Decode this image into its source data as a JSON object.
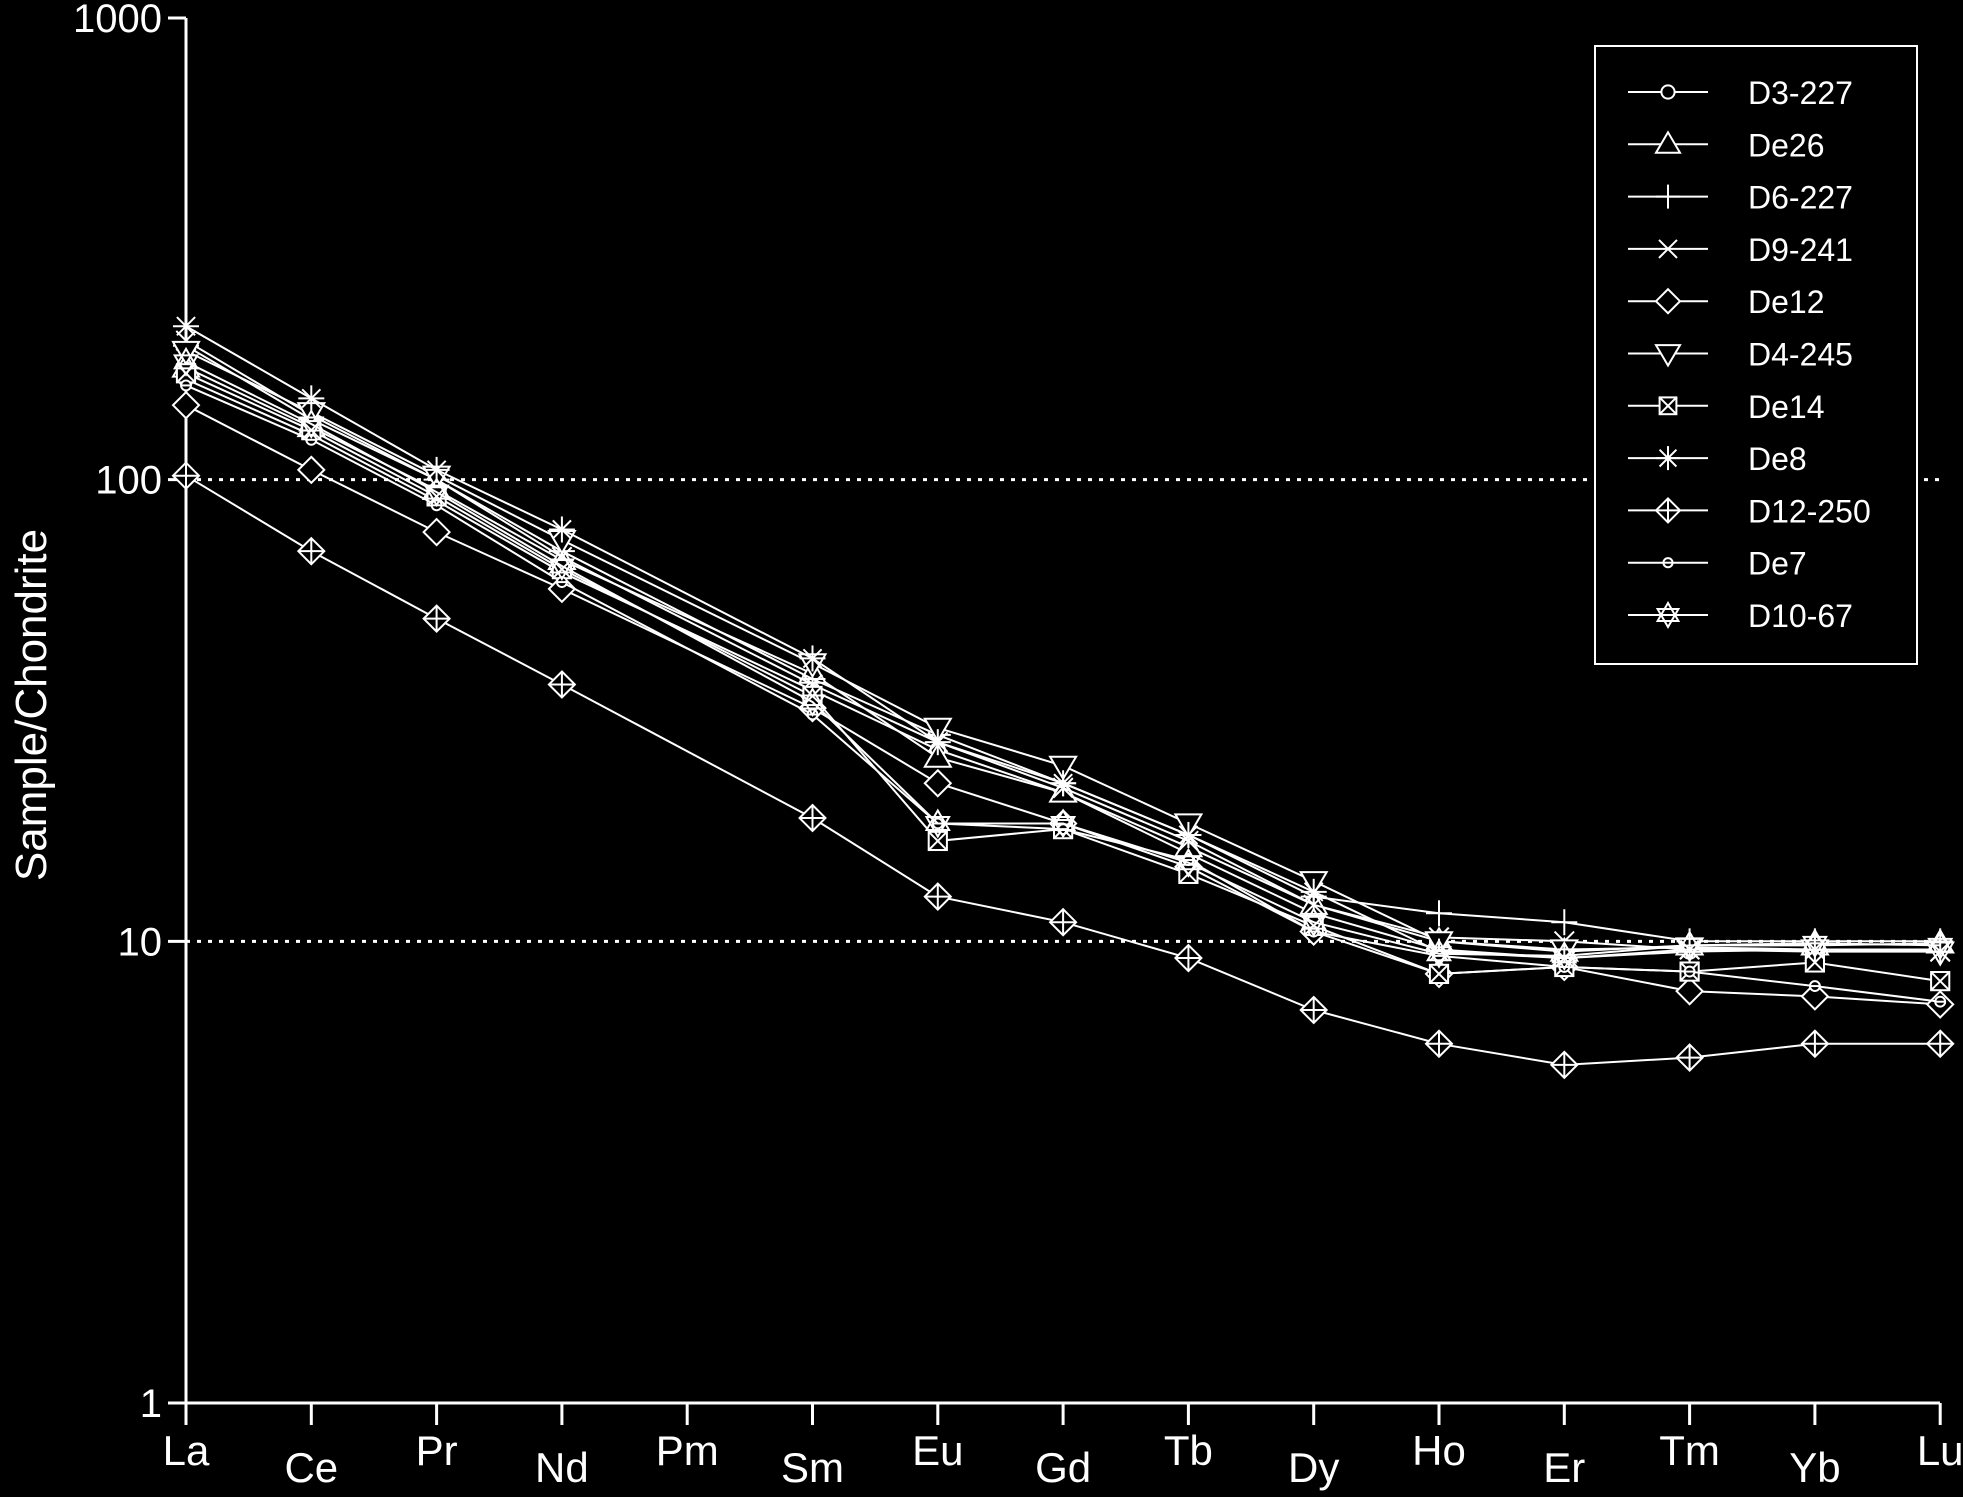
{
  "chart_data": {
    "type": "line",
    "title": "",
    "xlabel": "",
    "ylabel": "Sample/Chondrite",
    "yscale": "log",
    "ylim": [
      1,
      1000
    ],
    "yticks": [
      "1",
      "10",
      "100",
      "1000"
    ],
    "reference_lines": [
      10,
      100
    ],
    "grid": false,
    "legend_position": "top-right",
    "colors": {
      "background": "#000000",
      "foreground": "#ffffff"
    },
    "categories": [
      "La",
      "Ce",
      "Pr",
      "Nd",
      "Pm",
      "Sm",
      "Eu",
      "Gd",
      "Tb",
      "Dy",
      "Ho",
      "Er",
      "Tm",
      "Yb",
      "Lu"
    ],
    "series": [
      {
        "name": "D3-227",
        "marker": "circle",
        "values": [
          165,
          125,
          90,
          63,
          null,
          35,
          26,
          21,
          15.5,
          11.5,
          9.6,
          9.2,
          9.5,
          9.6,
          9.6
        ]
      },
      {
        "name": "De26",
        "marker": "triangle-up",
        "values": [
          175,
          130,
          95,
          67,
          null,
          38,
          25,
          21,
          16,
          12,
          10,
          9.5,
          9.8,
          9.8,
          9.9
        ]
      },
      {
        "name": "D6-227",
        "marker": "plus",
        "values": [
          195,
          135,
          100,
          70,
          null,
          37,
          28,
          22,
          17,
          12.5,
          11.5,
          11,
          10,
          10,
          10
        ]
      },
      {
        "name": "D9-241",
        "marker": "x",
        "values": [
          200,
          138,
          100,
          68,
          null,
          36,
          27,
          21.5,
          16.5,
          12,
          10.2,
          10,
          9.6,
          9.5,
          9.5
        ]
      },
      {
        "name": "De12",
        "marker": "diamond",
        "values": [
          145,
          105,
          77,
          58,
          null,
          32,
          22,
          18,
          14.5,
          10.5,
          8.5,
          8.8,
          7.8,
          7.6,
          7.3
        ]
      },
      {
        "name": "D4-245",
        "marker": "triangle-down",
        "values": [
          190,
          140,
          102,
          74,
          null,
          40,
          29,
          24,
          18,
          13.5,
          10,
          9.6,
          9.7,
          9.6,
          9.5
        ]
      },
      {
        "name": "De14",
        "marker": "square-x",
        "values": [
          170,
          128,
          92,
          64,
          null,
          34,
          16.5,
          17.5,
          14,
          10.8,
          8.5,
          8.8,
          8.6,
          9.0,
          8.2
        ]
      },
      {
        "name": "De8",
        "marker": "asterisk",
        "values": [
          215,
          150,
          105,
          78,
          null,
          41,
          27,
          22,
          17,
          12.8,
          9.5,
          9.2,
          9.6,
          9.6,
          9.5
        ]
      },
      {
        "name": "D12-250",
        "marker": "diamond-plus",
        "values": [
          102,
          70,
          50,
          36,
          null,
          18.5,
          12.5,
          11,
          9.2,
          7.1,
          6.0,
          5.4,
          5.6,
          6.0,
          6.0
        ]
      },
      {
        "name": "De7",
        "marker": "circle-small",
        "values": [
          160,
          122,
          88,
          60,
          null,
          31,
          18,
          17.5,
          15,
          10.5,
          9.3,
          8.8,
          8.6,
          8.0,
          7.4
        ]
      },
      {
        "name": "D10-67",
        "marker": "star-of-david",
        "values": [
          180,
          132,
          94,
          65,
          null,
          33,
          18,
          18,
          14.8,
          11,
          9.4,
          9.3,
          9.8,
          9.9,
          9.8
        ]
      }
    ]
  }
}
